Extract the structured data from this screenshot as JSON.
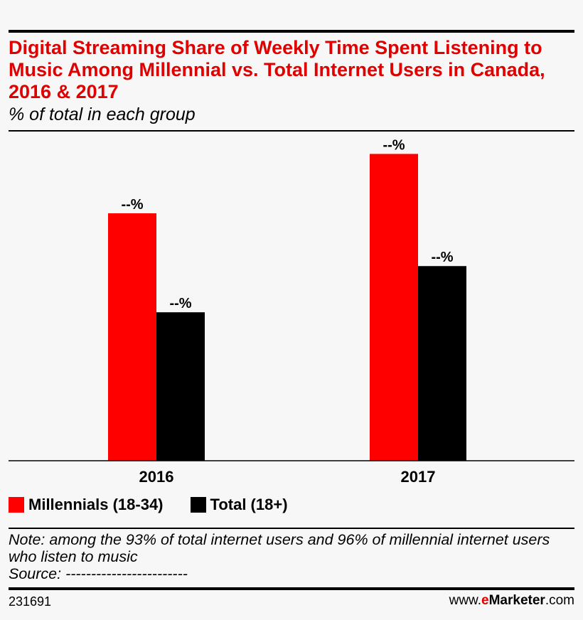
{
  "header": {
    "title": "Digital Streaming Share of Weekly Time Spent Listening to Music Among Millennial vs. Total Internet Users in Canada, 2016 & 2017",
    "subtitle": "% of total in each group"
  },
  "colors": {
    "millennials": "#ff0000",
    "total": "#000000",
    "title": "#e00000"
  },
  "chart_data": {
    "type": "bar",
    "title": "Digital Streaming Share of Weekly Time Spent Listening to Music Among Millennial vs. Total Internet Users in Canada, 2016 & 2017",
    "subtitle": "% of total in each group",
    "categories": [
      "2016",
      "2017"
    ],
    "series": [
      {
        "name": "Millennials (18-34)",
        "values": [
          75,
          93
        ],
        "labels": [
          "--%",
          "--%"
        ],
        "color": "#ff0000"
      },
      {
        "name": "Total (18+)",
        "values": [
          45,
          59
        ],
        "labels": [
          "--%",
          "--%"
        ],
        "color": "#000000"
      }
    ],
    "ylim": [
      0,
      100
    ],
    "grid": false,
    "legend_position": "bottom-left"
  },
  "legend": {
    "items": [
      {
        "label": "Millennials (18-34)",
        "color": "#ff0000"
      },
      {
        "label": "Total (18+)",
        "color": "#000000"
      }
    ]
  },
  "notes": {
    "note": "Note: among the 93% of total internet users and 96% of millennial internet users who listen to music",
    "source": "Source: ------------------------"
  },
  "footer": {
    "chart_id": "231691",
    "brand_prefix": "www.",
    "brand_e": "e",
    "brand_main": "Marketer",
    "brand_suffix": ".com"
  }
}
